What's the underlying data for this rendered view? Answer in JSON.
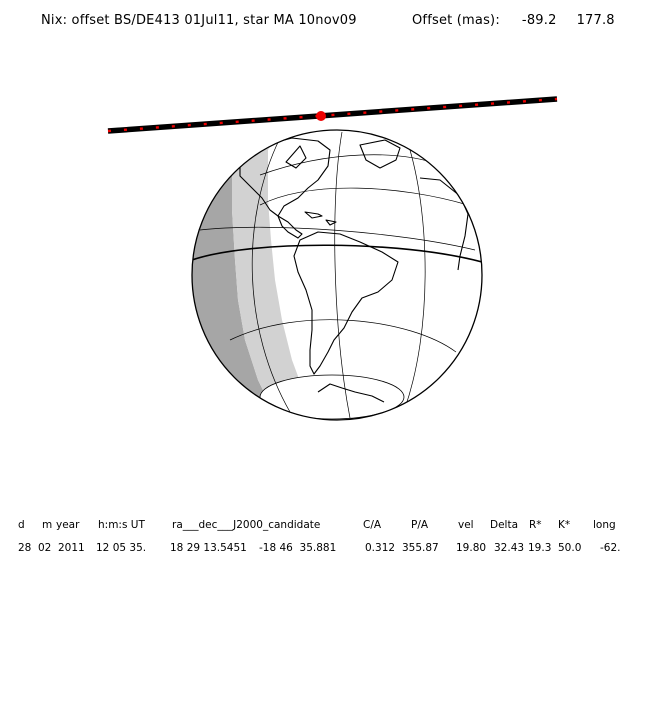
{
  "header": {
    "title": "Nix: offset BS/DE413 01Jul11, star MA 10nov09",
    "offset_label": "Offset (mas):",
    "offset_x": "-89.2",
    "offset_y": "177.8"
  },
  "table": {
    "columns": [
      "d",
      "m",
      "year",
      "h:m:s UT",
      "ra___dec___J2000_candidate",
      "C/A",
      "P/A",
      "vel",
      "Delta",
      "R*",
      "K*",
      "long"
    ],
    "values": [
      "28",
      "02",
      "2011",
      "12 05 35.",
      "18 29 13.5451",
      "-18 46  35.881",
      "0.312",
      "355.87",
      "19.80",
      "32.43",
      "19.3",
      "50.0",
      "-62."
    ]
  },
  "colors": {
    "track": "#000000",
    "track_ticks": "#ee0000",
    "event_point": "#ee0000",
    "night_shade": "#a6a6a6",
    "twilight_shade": "#d2d2d2",
    "globe_day": "#ffffff",
    "grid": "#000000"
  },
  "map": {
    "projection": "orthographic globe",
    "event_marker": "red-dot-on-shadow-track",
    "terminator_side": "left (west)"
  }
}
